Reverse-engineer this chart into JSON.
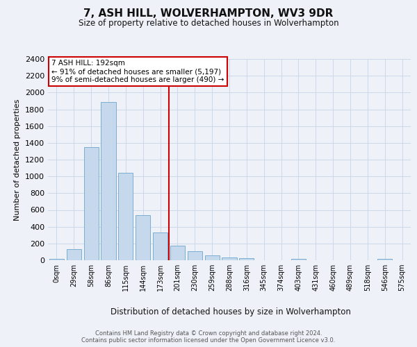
{
  "title": "7, ASH HILL, WOLVERHAMPTON, WV3 9DR",
  "subtitle": "Size of property relative to detached houses in Wolverhampton",
  "xlabel": "Distribution of detached houses by size in Wolverhampton",
  "ylabel": "Number of detached properties",
  "footer_line1": "Contains HM Land Registry data © Crown copyright and database right 2024.",
  "footer_line2": "Contains public sector information licensed under the Open Government Licence v3.0.",
  "bar_labels": [
    "0sqm",
    "29sqm",
    "58sqm",
    "86sqm",
    "115sqm",
    "144sqm",
    "173sqm",
    "201sqm",
    "230sqm",
    "259sqm",
    "288sqm",
    "316sqm",
    "345sqm",
    "374sqm",
    "403sqm",
    "431sqm",
    "460sqm",
    "489sqm",
    "518sqm",
    "546sqm",
    "575sqm"
  ],
  "bar_values": [
    15,
    135,
    1350,
    1890,
    1040,
    540,
    335,
    170,
    110,
    55,
    35,
    25,
    0,
    0,
    20,
    0,
    0,
    0,
    0,
    15,
    0
  ],
  "bar_color": "#c5d8ec",
  "bar_edge_color": "#7aaed0",
  "ylim_max": 2400,
  "yticks": [
    0,
    200,
    400,
    600,
    800,
    1000,
    1200,
    1400,
    1600,
    1800,
    2000,
    2200,
    2400
  ],
  "vline_index": 6.5,
  "vline_color": "#cc0000",
  "annotation_title": "7 ASH HILL: 192sqm",
  "annotation_line2": "← 91% of detached houses are smaller (5,197)",
  "annotation_line3": "9% of semi-detached houses are larger (490) →",
  "annotation_box_facecolor": "#ffffff",
  "annotation_box_edgecolor": "#cc0000",
  "grid_color": "#ccd8e8",
  "background_color": "#eef2f8",
  "title_fontsize": 11,
  "subtitle_fontsize": 8.5,
  "ylabel_fontsize": 8,
  "xlabel_fontsize": 8.5,
  "ytick_fontsize": 8,
  "xtick_fontsize": 7,
  "annotation_fontsize": 7.5,
  "footer_fontsize": 6
}
